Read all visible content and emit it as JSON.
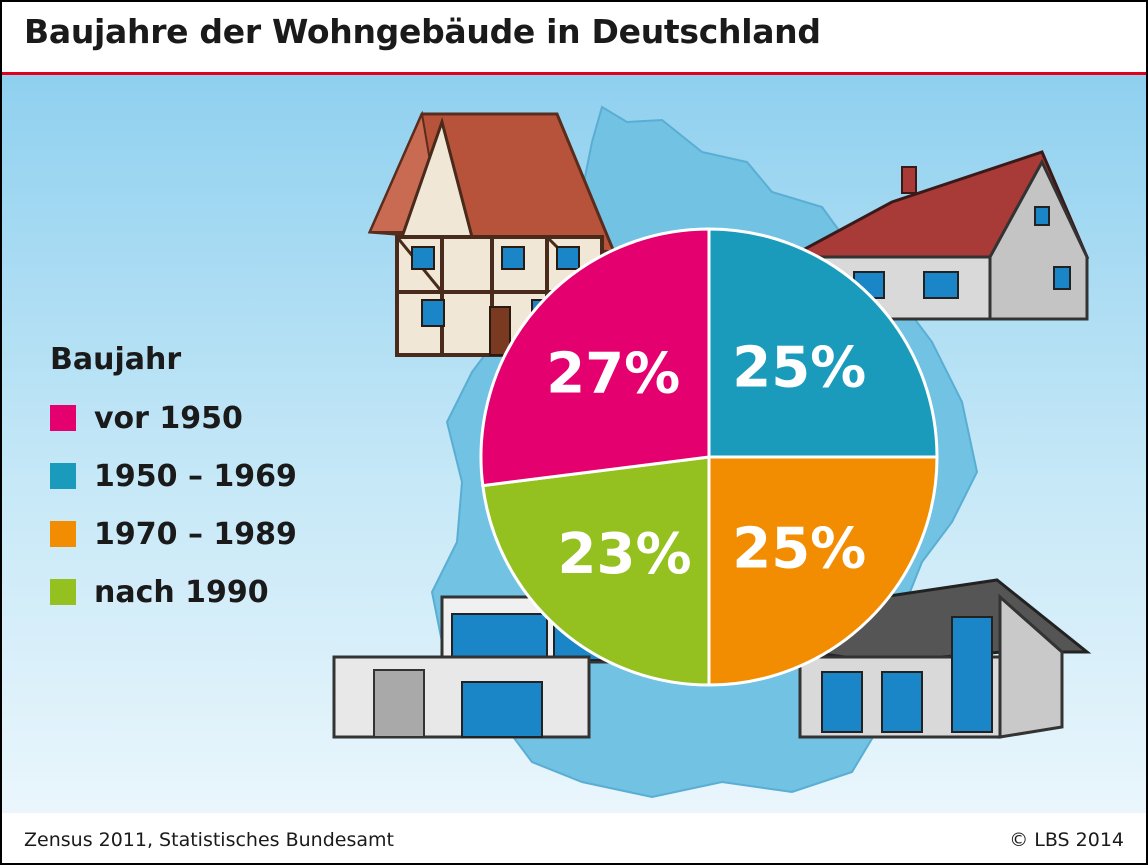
{
  "title": "Baujahre der Wohngebäude in Deutschland",
  "footer": {
    "source": "Zensus 2011, Statistisches Bundesamt",
    "copyright": "© LBS 2014"
  },
  "legend": {
    "title": "Baujahr"
  },
  "chart_data": {
    "type": "pie",
    "title": "Baujahre der Wohngebäude in Deutschland",
    "legend_title": "Baujahr",
    "legend_position": "left",
    "categories": [
      "vor 1950",
      "1950 – 1969",
      "1970 – 1989",
      "nach 1990"
    ],
    "values": [
      27,
      25,
      25,
      23
    ],
    "labels": [
      "27%",
      "25%",
      "25%",
      "23%"
    ],
    "colors": [
      "#e4006e",
      "#1b9bbc",
      "#f28c00",
      "#94c11f"
    ]
  }
}
